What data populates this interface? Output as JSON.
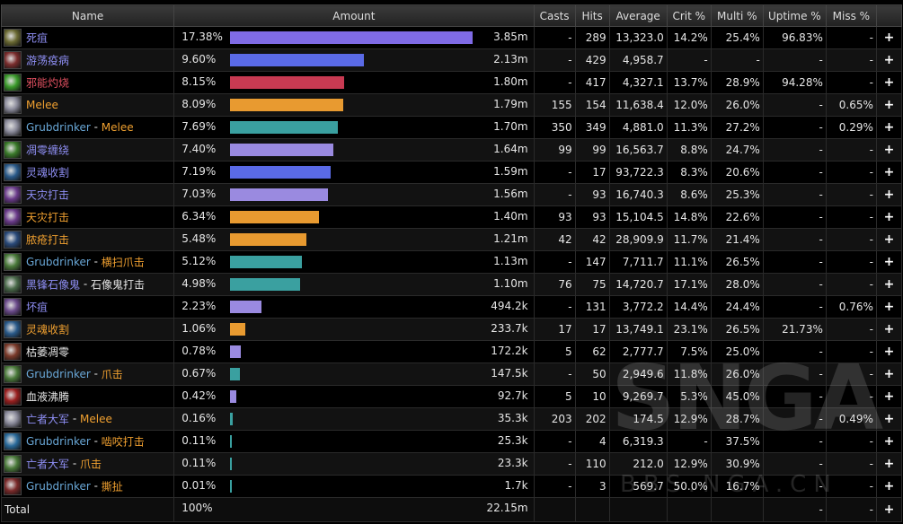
{
  "headers": [
    "Name",
    "Amount",
    "Casts",
    "Hits",
    "Average",
    "Crit %",
    "Multi %",
    "Uptime %",
    "Miss %",
    ""
  ],
  "plus_label": "+",
  "rows": [
    {
      "name": "死疽",
      "name_color": "#8f8ff5",
      "sub": "",
      "icon": "#6b6a33",
      "pct": "17.38%",
      "bar": 17.38,
      "bar_color": "#7f6be6",
      "amt": "3.85m",
      "casts": "-",
      "hits": "289",
      "avg": "13,323.0",
      "crit": "14.2%",
      "multi": "25.4%",
      "uptime": "96.83%",
      "miss": "-"
    },
    {
      "name": "游荡疫病",
      "name_color": "#8f8ff5",
      "sub": "",
      "icon": "#7a2d2d",
      "pct": "9.60%",
      "bar": 9.6,
      "bar_color": "#5a6ae6",
      "amt": "2.13m",
      "casts": "-",
      "hits": "429",
      "avg": "4,958.7",
      "crit": "-",
      "multi": "-",
      "uptime": "-",
      "miss": "-"
    },
    {
      "name": "邪能灼烧",
      "name_color": "#e05060",
      "sub": "",
      "icon": "#3a9a2a",
      "pct": "8.15%",
      "bar": 8.15,
      "bar_color": "#c83a52",
      "amt": "1.80m",
      "casts": "-",
      "hits": "417",
      "avg": "4,327.1",
      "crit": "13.7%",
      "multi": "28.9%",
      "uptime": "94.28%",
      "miss": "-"
    },
    {
      "name": "Melee",
      "name_color": "#f0a030",
      "sub": "",
      "icon": "#8a8a9a",
      "pct": "8.09%",
      "bar": 8.09,
      "bar_color": "#e89a30",
      "amt": "1.79m",
      "casts": "155",
      "hits": "154",
      "avg": "11,638.4",
      "crit": "12.0%",
      "multi": "26.0%",
      "uptime": "-",
      "miss": "0.65%"
    },
    {
      "name": "Grubdrinker",
      "name_color": "#6aa8d8",
      "sub": "Melee",
      "sub_color": "#f0a030",
      "icon": "#8a8a9a",
      "pct": "7.69%",
      "bar": 7.69,
      "bar_color": "#3aa0a0",
      "amt": "1.70m",
      "casts": "350",
      "hits": "349",
      "avg": "4,881.0",
      "crit": "11.3%",
      "multi": "27.2%",
      "uptime": "-",
      "miss": "0.29%"
    },
    {
      "name": "凋零缠绕",
      "name_color": "#8f8ff5",
      "sub": "",
      "icon": "#3a7a2a",
      "pct": "7.40%",
      "bar": 7.4,
      "bar_color": "#9a8ae0",
      "amt": "1.64m",
      "casts": "99",
      "hits": "99",
      "avg": "16,563.7",
      "crit": "8.8%",
      "multi": "24.7%",
      "uptime": "-",
      "miss": "-"
    },
    {
      "name": "灵魂收割",
      "name_color": "#8f8ff5",
      "sub": "",
      "icon": "#2a5a8a",
      "pct": "7.19%",
      "bar": 7.19,
      "bar_color": "#5a6ae6",
      "amt": "1.59m",
      "casts": "-",
      "hits": "17",
      "avg": "93,722.3",
      "crit": "8.3%",
      "multi": "20.6%",
      "uptime": "-",
      "miss": "-"
    },
    {
      "name": "天灾打击",
      "name_color": "#8f8ff5",
      "sub": "",
      "icon": "#6a3a8a",
      "pct": "7.03%",
      "bar": 7.03,
      "bar_color": "#9a8ae0",
      "amt": "1.56m",
      "casts": "-",
      "hits": "93",
      "avg": "16,740.3",
      "crit": "8.6%",
      "multi": "25.3%",
      "uptime": "-",
      "miss": "-"
    },
    {
      "name": "天灾打击",
      "name_color": "#f0a030",
      "sub": "",
      "icon": "#6a3a8a",
      "pct": "6.34%",
      "bar": 6.34,
      "bar_color": "#e89a30",
      "amt": "1.40m",
      "casts": "93",
      "hits": "93",
      "avg": "15,104.5",
      "crit": "14.8%",
      "multi": "22.6%",
      "uptime": "-",
      "miss": "-"
    },
    {
      "name": "脓疮打击",
      "name_color": "#f0a030",
      "sub": "",
      "icon": "#2a4a7a",
      "pct": "5.48%",
      "bar": 5.48,
      "bar_color": "#e89a30",
      "amt": "1.21m",
      "casts": "42",
      "hits": "42",
      "avg": "28,909.9",
      "crit": "11.7%",
      "multi": "21.4%",
      "uptime": "-",
      "miss": "-"
    },
    {
      "name": "Grubdrinker",
      "name_color": "#6aa8d8",
      "sub": "横扫爪击",
      "sub_color": "#f0a030",
      "icon": "#4a7a3a",
      "pct": "5.12%",
      "bar": 5.12,
      "bar_color": "#3aa0a0",
      "amt": "1.13m",
      "casts": "-",
      "hits": "147",
      "avg": "7,711.7",
      "crit": "11.1%",
      "multi": "26.5%",
      "uptime": "-",
      "miss": "-"
    },
    {
      "name": "黑锋石像鬼",
      "name_color": "#8f8ff5",
      "sub": "石像鬼打击",
      "sub_color": "#e6e6e6",
      "icon": "#4a6a4a",
      "pct": "4.98%",
      "bar": 4.98,
      "bar_color": "#3aa0a0",
      "amt": "1.10m",
      "casts": "76",
      "hits": "75",
      "avg": "14,720.7",
      "crit": "17.1%",
      "multi": "28.0%",
      "uptime": "-",
      "miss": "-"
    },
    {
      "name": "坏疽",
      "name_color": "#8f8ff5",
      "sub": "",
      "icon": "#6a4a8a",
      "pct": "2.23%",
      "bar": 2.23,
      "bar_color": "#9a8ae0",
      "amt": "494.2k",
      "casts": "-",
      "hits": "131",
      "avg": "3,772.2",
      "crit": "14.4%",
      "multi": "24.4%",
      "uptime": "-",
      "miss": "0.76%"
    },
    {
      "name": "灵魂收割",
      "name_color": "#f0a030",
      "sub": "",
      "icon": "#2a5a8a",
      "pct": "1.06%",
      "bar": 1.06,
      "bar_color": "#e89a30",
      "amt": "233.7k",
      "casts": "17",
      "hits": "17",
      "avg": "13,749.1",
      "crit": "23.1%",
      "multi": "26.5%",
      "uptime": "21.73%",
      "miss": "-"
    },
    {
      "name": "枯萎凋零",
      "name_color": "#e6e6e6",
      "sub": "",
      "icon": "#7a3a2a",
      "pct": "0.78%",
      "bar": 0.78,
      "bar_color": "#9a8ae0",
      "amt": "172.2k",
      "casts": "5",
      "hits": "62",
      "avg": "2,777.7",
      "crit": "7.5%",
      "multi": "25.0%",
      "uptime": "-",
      "miss": "-"
    },
    {
      "name": "Grubdrinker",
      "name_color": "#6aa8d8",
      "sub": "爪击",
      "sub_color": "#f0a030",
      "icon": "#4a7a3a",
      "pct": "0.67%",
      "bar": 0.67,
      "bar_color": "#3aa0a0",
      "amt": "147.5k",
      "casts": "-",
      "hits": "50",
      "avg": "2,949.6",
      "crit": "11.8%",
      "multi": "26.0%",
      "uptime": "-",
      "miss": "-"
    },
    {
      "name": "血液沸腾",
      "name_color": "#e6e6e6",
      "sub": "",
      "icon": "#9a2020",
      "pct": "0.42%",
      "bar": 0.42,
      "bar_color": "#9a8ae0",
      "amt": "92.7k",
      "casts": "5",
      "hits": "10",
      "avg": "9,269.7",
      "crit": "5.3%",
      "multi": "45.0%",
      "uptime": "-",
      "miss": "-"
    },
    {
      "name": "亡者大军",
      "name_color": "#8f8ff5",
      "sub": "Melee",
      "sub_color": "#f0a030",
      "icon": "#8a8a9a",
      "pct": "0.16%",
      "bar": 0.16,
      "bar_color": "#3aa0a0",
      "amt": "35.3k",
      "casts": "203",
      "hits": "202",
      "avg": "174.5",
      "crit": "12.9%",
      "multi": "28.7%",
      "uptime": "-",
      "miss": "0.49%"
    },
    {
      "name": "Grubdrinker",
      "name_color": "#6aa8d8",
      "sub": "啮咬打击",
      "sub_color": "#f0a030",
      "icon": "#2a6a9a",
      "pct": "0.11%",
      "bar": 0.11,
      "bar_color": "#3aa0a0",
      "amt": "25.3k",
      "casts": "-",
      "hits": "4",
      "avg": "6,319.3",
      "crit": "-",
      "multi": "37.5%",
      "uptime": "-",
      "miss": "-"
    },
    {
      "name": "亡者大军",
      "name_color": "#8f8ff5",
      "sub": "爪击",
      "sub_color": "#f0a030",
      "icon": "#4a7a3a",
      "pct": "0.11%",
      "bar": 0.11,
      "bar_color": "#3aa0a0",
      "amt": "23.3k",
      "casts": "-",
      "hits": "110",
      "avg": "212.0",
      "crit": "12.9%",
      "multi": "30.9%",
      "uptime": "-",
      "miss": "-"
    },
    {
      "name": "Grubdrinker",
      "name_color": "#6aa8d8",
      "sub": "撕扯",
      "sub_color": "#f0a030",
      "icon": "#7a2a2a",
      "pct": "0.01%",
      "bar": 0.01,
      "bar_color": "#3aa0a0",
      "amt": "1.7k",
      "casts": "-",
      "hits": "3",
      "avg": "569.7",
      "crit": "50.0%",
      "multi": "16.7%",
      "uptime": "-",
      "miss": "-"
    }
  ],
  "total": {
    "label": "Total",
    "pct": "100%",
    "amt": "22.15m",
    "uptime": "-",
    "miss": "-"
  },
  "bar_max_pct": 17.38,
  "watermark": {
    "main": "SNGA",
    "sub": "BBS.NGA.CN"
  }
}
